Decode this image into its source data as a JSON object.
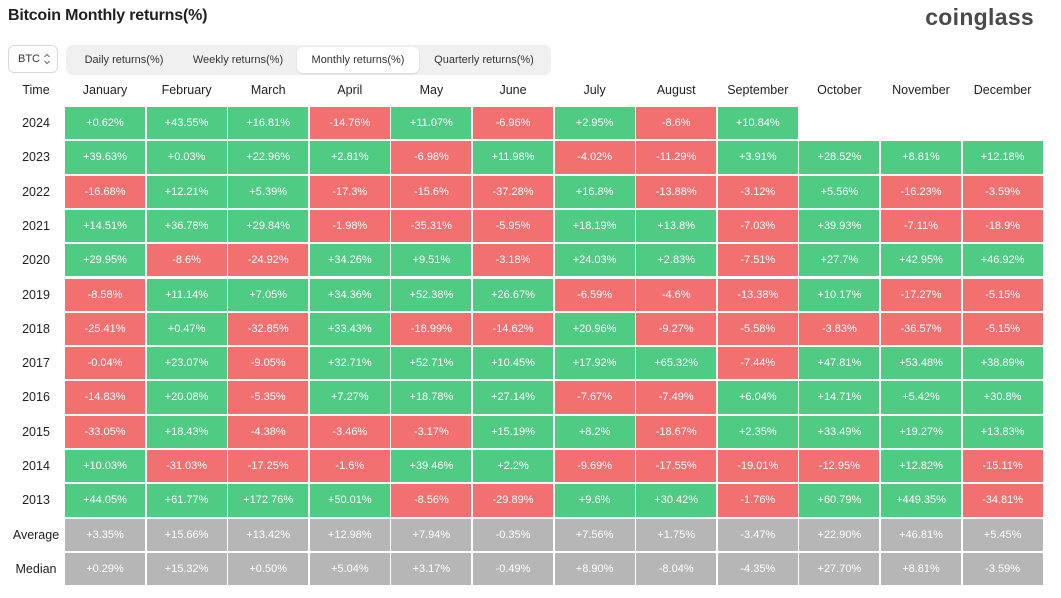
{
  "header": {
    "title": "Bitcoin Monthly returns(%)",
    "logo": "coinglass"
  },
  "controls": {
    "coin": "BTC",
    "tabs": [
      {
        "label": "Daily returns(%)",
        "active": false
      },
      {
        "label": "Weekly returns(%)",
        "active": false
      },
      {
        "label": "Monthly returns(%)",
        "active": true
      },
      {
        "label": "Quarterly returns(%)",
        "active": false
      }
    ]
  },
  "table": {
    "corner": "Time",
    "months": [
      "January",
      "February",
      "March",
      "April",
      "May",
      "June",
      "July",
      "August",
      "September",
      "October",
      "November",
      "December"
    ],
    "rows": [
      {
        "label": "2024",
        "values": [
          "+0.62%",
          "+43.55%",
          "+16.81%",
          "-14.76%",
          "+11.07%",
          "-6.96%",
          "+2.95%",
          "-8.6%",
          "+10.84%",
          "",
          "",
          ""
        ]
      },
      {
        "label": "2023",
        "values": [
          "+39.63%",
          "+0.03%",
          "+22.96%",
          "+2.81%",
          "-6.98%",
          "+11.98%",
          "-4.02%",
          "-11.29%",
          "+3.91%",
          "+28.52%",
          "+8.81%",
          "+12.18%"
        ]
      },
      {
        "label": "2022",
        "values": [
          "-16.68%",
          "+12.21%",
          "+5.39%",
          "-17.3%",
          "-15.6%",
          "-37.28%",
          "+16.8%",
          "-13.88%",
          "-3.12%",
          "+5.56%",
          "-16.23%",
          "-3.59%"
        ]
      },
      {
        "label": "2021",
        "values": [
          "+14.51%",
          "+36.78%",
          "+29.84%",
          "-1.98%",
          "-35.31%",
          "-5.95%",
          "+18.19%",
          "+13.8%",
          "-7.03%",
          "+39.93%",
          "-7.11%",
          "-18.9%"
        ]
      },
      {
        "label": "2020",
        "values": [
          "+29.95%",
          "-8.6%",
          "-24.92%",
          "+34.26%",
          "+9.51%",
          "-3.18%",
          "+24.03%",
          "+2.83%",
          "-7.51%",
          "+27.7%",
          "+42.95%",
          "+46.92%"
        ]
      },
      {
        "label": "2019",
        "values": [
          "-8.58%",
          "+11.14%",
          "+7.05%",
          "+34.36%",
          "+52.38%",
          "+26.67%",
          "-6.59%",
          "-4.6%",
          "-13.38%",
          "+10.17%",
          "-17.27%",
          "-5.15%"
        ]
      },
      {
        "label": "2018",
        "values": [
          "-25.41%",
          "+0.47%",
          "-32.85%",
          "+33.43%",
          "-18.99%",
          "-14.62%",
          "+20.96%",
          "-9.27%",
          "-5.58%",
          "-3.83%",
          "-36.57%",
          "-5.15%"
        ]
      },
      {
        "label": "2017",
        "values": [
          "-0.04%",
          "+23.07%",
          "-9.05%",
          "+32.71%",
          "+52.71%",
          "+10.45%",
          "+17.92%",
          "+65.32%",
          "-7.44%",
          "+47.81%",
          "+53.48%",
          "+38.89%"
        ]
      },
      {
        "label": "2016",
        "values": [
          "-14.83%",
          "+20.08%",
          "-5.35%",
          "+7.27%",
          "+18.78%",
          "+27.14%",
          "-7.67%",
          "-7.49%",
          "+6.04%",
          "+14.71%",
          "+5.42%",
          "+30.8%"
        ]
      },
      {
        "label": "2015",
        "values": [
          "-33.05%",
          "+18.43%",
          "-4.38%",
          "-3.46%",
          "-3.17%",
          "+15.19%",
          "+8.2%",
          "-18.67%",
          "+2.35%",
          "+33.49%",
          "+19.27%",
          "+13.83%"
        ]
      },
      {
        "label": "2014",
        "values": [
          "+10.03%",
          "-31.03%",
          "-17.25%",
          "-1.6%",
          "+39.46%",
          "+2.2%",
          "-9.69%",
          "-17.55%",
          "-19.01%",
          "-12.95%",
          "+12.82%",
          "-15.11%"
        ]
      },
      {
        "label": "2013",
        "values": [
          "+44.05%",
          "+61.77%",
          "+172.76%",
          "+50.01%",
          "-8.56%",
          "-29.89%",
          "+9.6%",
          "+30.42%",
          "-1.76%",
          "+60.79%",
          "+449.35%",
          "-34.81%"
        ]
      }
    ],
    "stats": [
      {
        "label": "Average",
        "values": [
          "+3.35%",
          "+15.66%",
          "+13.42%",
          "+12.98%",
          "+7.94%",
          "-0.35%",
          "+7.56%",
          "+1.75%",
          "-3.47%",
          "+22.90%",
          "+46.81%",
          "+5.45%"
        ]
      },
      {
        "label": "Median",
        "values": [
          "+0.29%",
          "+15.32%",
          "+0.50%",
          "+5.04%",
          "+3.17%",
          "-0.49%",
          "+8.90%",
          "-8.04%",
          "-4.35%",
          "+27.70%",
          "+8.81%",
          "-3.59%"
        ]
      }
    ]
  },
  "colors": {
    "positive": "#4fcb84",
    "negative": "#f2706f",
    "stat": "#b6b6b6"
  }
}
